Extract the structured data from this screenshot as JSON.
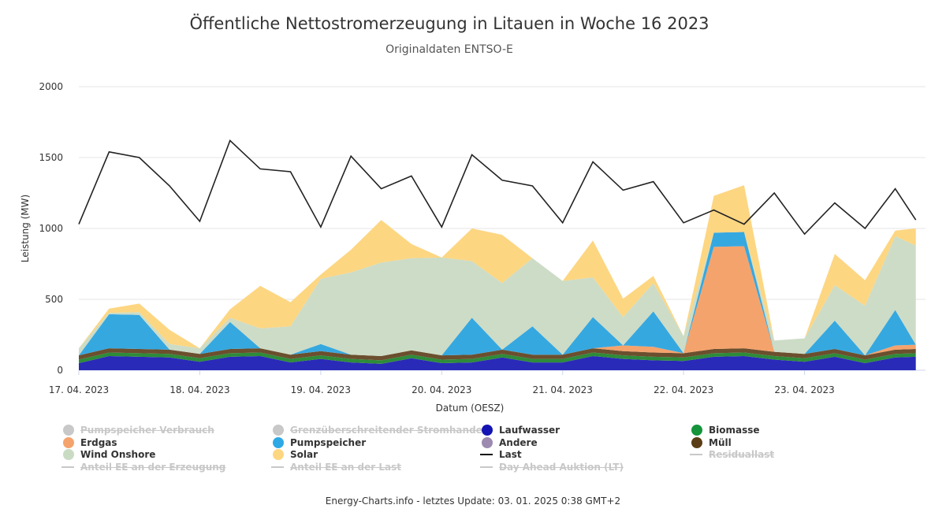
{
  "chart_data": {
    "type": "area",
    "title": "Öffentliche Nettostromerzeugung in Litauen in Woche 16 2023",
    "subtitle": "Originaldaten ENTSO-E",
    "xlabel": "Datum (OESZ)",
    "ylabel": "Leistung (MW)",
    "ylim": [
      0,
      2000
    ],
    "yticks": [
      "0",
      "500",
      "1000",
      "1500",
      "2000"
    ],
    "xlim": [
      0,
      7
    ],
    "x_unit": "days since 17. 04. 2023 00:00",
    "xtick_labels": [
      "17. 04. 2023",
      "18. 04. 2023",
      "19. 04. 2023",
      "20. 04. 2023",
      "21. 04. 2023",
      "22. 04. 2023",
      "23. 04. 2023"
    ],
    "grid": "horizontal",
    "legend_position": "bottom",
    "x": [
      0.0,
      0.25,
      0.5,
      0.75,
      1.0,
      1.25,
      1.5,
      1.75,
      2.0,
      2.25,
      2.5,
      2.75,
      3.0,
      3.25,
      3.5,
      3.75,
      4.0,
      4.25,
      4.5,
      4.75,
      5.0,
      5.25,
      5.5,
      5.75,
      6.0,
      6.25,
      6.5,
      6.75,
      6.92
    ],
    "series": [
      {
        "name": "Laufwasser",
        "color": "#2a2ab8",
        "values": [
          50,
          100,
          95,
          90,
          60,
          95,
          100,
          55,
          80,
          55,
          45,
          85,
          50,
          55,
          90,
          55,
          55,
          100,
          80,
          70,
          65,
          95,
          100,
          75,
          60,
          95,
          50,
          90,
          95
        ]
      },
      {
        "name": "Biomasse",
        "color": "#2e8b3a",
        "values": [
          25,
          25,
          25,
          25,
          25,
          25,
          25,
          25,
          25,
          25,
          25,
          25,
          25,
          25,
          25,
          25,
          25,
          25,
          25,
          25,
          25,
          25,
          25,
          25,
          25,
          25,
          25,
          25,
          25
        ]
      },
      {
        "name": "Müll",
        "color": "#6b4f2e",
        "values": [
          30,
          30,
          30,
          30,
          30,
          30,
          30,
          30,
          30,
          30,
          30,
          30,
          30,
          30,
          30,
          30,
          30,
          30,
          30,
          30,
          30,
          30,
          30,
          30,
          30,
          30,
          30,
          30,
          30
        ]
      },
      {
        "name": "Erdgas",
        "color": "#f5a36c",
        "values": [
          0,
          0,
          0,
          0,
          0,
          0,
          0,
          0,
          0,
          0,
          0,
          0,
          0,
          0,
          0,
          0,
          0,
          0,
          40,
          40,
          0,
          720,
          720,
          0,
          0,
          0,
          0,
          30,
          30
        ]
      },
      {
        "name": "Pumpspeicher",
        "color": "#36a8e0",
        "values": [
          0,
          240,
          240,
          0,
          0,
          190,
          0,
          0,
          50,
          0,
          0,
          0,
          0,
          260,
          0,
          200,
          0,
          220,
          0,
          250,
          0,
          100,
          100,
          0,
          0,
          200,
          0,
          250,
          0
        ]
      },
      {
        "name": "Andere",
        "color": "#9c8ab0",
        "values": [
          0,
          0,
          0,
          0,
          0,
          0,
          0,
          0,
          0,
          0,
          0,
          0,
          0,
          0,
          0,
          0,
          0,
          0,
          0,
          0,
          0,
          0,
          0,
          0,
          0,
          0,
          0,
          0,
          0
        ]
      },
      {
        "name": "Wind Onshore",
        "color": "#cddcc6",
        "values": [
          50,
          10,
          20,
          40,
          40,
          30,
          140,
          200,
          460,
          580,
          660,
          650,
          690,
          400,
          470,
          480,
          520,
          280,
          200,
          200,
          120,
          0,
          0,
          80,
          110,
          250,
          350,
          520,
          700
        ]
      },
      {
        "name": "Solar",
        "color": "#fdd682",
        "values": [
          0,
          30,
          60,
          100,
          0,
          60,
          300,
          170,
          30,
          160,
          300,
          100,
          0,
          230,
          340,
          0,
          0,
          260,
          130,
          50,
          0,
          260,
          330,
          0,
          0,
          220,
          180,
          40,
          120
        ]
      }
    ],
    "last": {
      "name": "Last",
      "color": "#222222",
      "values": [
        1030,
        1540,
        1500,
        1300,
        1050,
        1620,
        1420,
        1400,
        1010,
        1510,
        1280,
        1370,
        1010,
        1520,
        1340,
        1300,
        1040,
        1470,
        1270,
        1330,
        1040,
        1130,
        1030,
        1250,
        960,
        1180,
        1000,
        1280,
        1060
      ]
    },
    "footer": "Energy-Charts.info - letztes Update: 03. 01. 2025 0:38 GMT+2"
  },
  "legend": [
    {
      "label": "Pumpspeicher Verbrauch",
      "color": "#c8c8c8",
      "type": "dot",
      "hidden": true
    },
    {
      "label": "Grenzüberschreitender Stromhandel",
      "color": "#c8c8c8",
      "type": "dot",
      "hidden": true
    },
    {
      "label": "Laufwasser",
      "color": "#1414b4",
      "type": "dot",
      "hidden": false
    },
    {
      "label": "Biomasse",
      "color": "#15943c",
      "type": "dot",
      "hidden": false
    },
    {
      "label": "Erdgas",
      "color": "#f5a36c",
      "type": "dot",
      "hidden": false
    },
    {
      "label": "Pumpspeicher",
      "color": "#2ea9e6",
      "type": "dot",
      "hidden": false
    },
    {
      "label": "Andere",
      "color": "#9c8ab0",
      "type": "dot",
      "hidden": false
    },
    {
      "label": "Müll",
      "color": "#5a3d16",
      "type": "dot",
      "hidden": false
    },
    {
      "label": "Wind Onshore",
      "color": "#c9dcc3",
      "type": "dot",
      "hidden": false
    },
    {
      "label": "Solar",
      "color": "#fdd682",
      "type": "dot",
      "hidden": false
    },
    {
      "label": "Last",
      "color": "#111111",
      "type": "line",
      "hidden": false
    },
    {
      "label": "Residuallast",
      "color": "#c8c8c8",
      "type": "line",
      "hidden": true
    },
    {
      "label": "Anteil EE an der Erzeugung",
      "color": "#c8c8c8",
      "type": "line",
      "hidden": true
    },
    {
      "label": "Anteil EE an der Last",
      "color": "#c8c8c8",
      "type": "line",
      "hidden": true
    },
    {
      "label": "Day Ahead Auktion (LT)",
      "color": "#c8c8c8",
      "type": "line",
      "hidden": true
    }
  ]
}
